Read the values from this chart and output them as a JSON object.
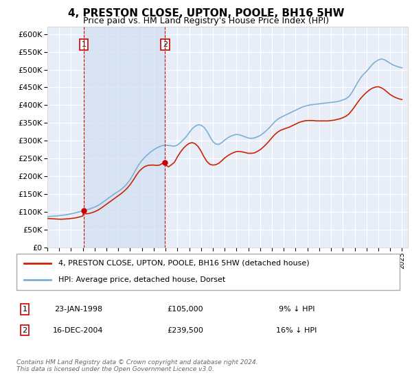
{
  "title": "4, PRESTON CLOSE, UPTON, POOLE, BH16 5HW",
  "subtitle": "Price paid vs. HM Land Registry's House Price Index (HPI)",
  "ylim": [
    0,
    620000
  ],
  "yticks": [
    0,
    50000,
    100000,
    150000,
    200000,
    250000,
    300000,
    350000,
    400000,
    450000,
    500000,
    550000,
    600000
  ],
  "xlim_start": 1995.0,
  "xlim_end": 2025.5,
  "plot_bg_color": "#e8eef8",
  "grid_color": "#ffffff",
  "sale1_date": 1998.07,
  "sale1_price": 105000,
  "sale1_label": "1",
  "sale2_date": 2004.96,
  "sale2_price": 239500,
  "sale2_label": "2",
  "vline_color": "#cc0000",
  "shade_color": "#d0ddf0",
  "sale_marker_color": "#cc0000",
  "legend_line1": "4, PRESTON CLOSE, UPTON, POOLE, BH16 5HW (detached house)",
  "legend_line2": "HPI: Average price, detached house, Dorset",
  "table_row1": [
    "1",
    "23-JAN-1998",
    "£105,000",
    "9% ↓ HPI"
  ],
  "table_row2": [
    "2",
    "16-DEC-2004",
    "£239,500",
    "16% ↓ HPI"
  ],
  "footnote": "Contains HM Land Registry data © Crown copyright and database right 2024.\nThis data is licensed under the Open Government Licence v3.0.",
  "hpi_color": "#7bafd4",
  "price_color": "#cc2200",
  "hpi_data": [
    [
      1995.0,
      87000
    ],
    [
      1995.25,
      88000
    ],
    [
      1995.5,
      88500
    ],
    [
      1995.75,
      89000
    ],
    [
      1996.0,
      90000
    ],
    [
      1996.25,
      91000
    ],
    [
      1996.5,
      92000
    ],
    [
      1996.75,
      93500
    ],
    [
      1997.0,
      95000
    ],
    [
      1997.25,
      97000
    ],
    [
      1997.5,
      99000
    ],
    [
      1997.75,
      101000
    ],
    [
      1998.0,
      103000
    ],
    [
      1998.25,
      106000
    ],
    [
      1998.5,
      108000
    ],
    [
      1998.75,
      111000
    ],
    [
      1999.0,
      114000
    ],
    [
      1999.25,
      118000
    ],
    [
      1999.5,
      123000
    ],
    [
      1999.75,
      129000
    ],
    [
      2000.0,
      135000
    ],
    [
      2000.25,
      141000
    ],
    [
      2000.5,
      147000
    ],
    [
      2000.75,
      153000
    ],
    [
      2001.0,
      158000
    ],
    [
      2001.25,
      164000
    ],
    [
      2001.5,
      171000
    ],
    [
      2001.75,
      180000
    ],
    [
      2002.0,
      191000
    ],
    [
      2002.25,
      205000
    ],
    [
      2002.5,
      220000
    ],
    [
      2002.75,
      234000
    ],
    [
      2003.0,
      245000
    ],
    [
      2003.25,
      254000
    ],
    [
      2003.5,
      262000
    ],
    [
      2003.75,
      269000
    ],
    [
      2004.0,
      275000
    ],
    [
      2004.25,
      280000
    ],
    [
      2004.5,
      284000
    ],
    [
      2004.75,
      287000
    ],
    [
      2005.0,
      288000
    ],
    [
      2005.25,
      287000
    ],
    [
      2005.5,
      286000
    ],
    [
      2005.75,
      285000
    ],
    [
      2006.0,
      288000
    ],
    [
      2006.25,
      295000
    ],
    [
      2006.5,
      303000
    ],
    [
      2006.75,
      312000
    ],
    [
      2007.0,
      323000
    ],
    [
      2007.25,
      334000
    ],
    [
      2007.5,
      341000
    ],
    [
      2007.75,
      345000
    ],
    [
      2008.0,
      344000
    ],
    [
      2008.25,
      338000
    ],
    [
      2008.5,
      327000
    ],
    [
      2008.75,
      312000
    ],
    [
      2009.0,
      298000
    ],
    [
      2009.25,
      291000
    ],
    [
      2009.5,
      290000
    ],
    [
      2009.75,
      295000
    ],
    [
      2010.0,
      302000
    ],
    [
      2010.25,
      308000
    ],
    [
      2010.5,
      313000
    ],
    [
      2010.75,
      316000
    ],
    [
      2011.0,
      318000
    ],
    [
      2011.25,
      317000
    ],
    [
      2011.5,
      314000
    ],
    [
      2011.75,
      311000
    ],
    [
      2012.0,
      308000
    ],
    [
      2012.25,
      307000
    ],
    [
      2012.5,
      308000
    ],
    [
      2012.75,
      311000
    ],
    [
      2013.0,
      315000
    ],
    [
      2013.25,
      321000
    ],
    [
      2013.5,
      328000
    ],
    [
      2013.75,
      336000
    ],
    [
      2014.0,
      345000
    ],
    [
      2014.25,
      354000
    ],
    [
      2014.5,
      361000
    ],
    [
      2014.75,
      366000
    ],
    [
      2015.0,
      370000
    ],
    [
      2015.25,
      374000
    ],
    [
      2015.5,
      378000
    ],
    [
      2015.75,
      382000
    ],
    [
      2016.0,
      386000
    ],
    [
      2016.25,
      390000
    ],
    [
      2016.5,
      394000
    ],
    [
      2016.75,
      397000
    ],
    [
      2017.0,
      399000
    ],
    [
      2017.25,
      401000
    ],
    [
      2017.5,
      402000
    ],
    [
      2017.75,
      403000
    ],
    [
      2018.0,
      404000
    ],
    [
      2018.25,
      405000
    ],
    [
      2018.5,
      406000
    ],
    [
      2018.75,
      407000
    ],
    [
      2019.0,
      408000
    ],
    [
      2019.25,
      409000
    ],
    [
      2019.5,
      410000
    ],
    [
      2019.75,
      412000
    ],
    [
      2020.0,
      415000
    ],
    [
      2020.25,
      418000
    ],
    [
      2020.5,
      424000
    ],
    [
      2020.75,
      435000
    ],
    [
      2021.0,
      449000
    ],
    [
      2021.25,
      464000
    ],
    [
      2021.5,
      477000
    ],
    [
      2021.75,
      487000
    ],
    [
      2022.0,
      495000
    ],
    [
      2022.25,
      505000
    ],
    [
      2022.5,
      515000
    ],
    [
      2022.75,
      522000
    ],
    [
      2023.0,
      527000
    ],
    [
      2023.25,
      530000
    ],
    [
      2023.5,
      528000
    ],
    [
      2023.75,
      523000
    ],
    [
      2024.0,
      518000
    ],
    [
      2024.25,
      513000
    ],
    [
      2024.5,
      510000
    ],
    [
      2024.75,
      507000
    ],
    [
      2025.0,
      505000
    ]
  ],
  "price_data": [
    [
      1995.0,
      82000
    ],
    [
      1995.25,
      81500
    ],
    [
      1995.5,
      81000
    ],
    [
      1995.75,
      80500
    ],
    [
      1996.0,
      80000
    ],
    [
      1996.25,
      80000
    ],
    [
      1996.5,
      80500
    ],
    [
      1996.75,
      81000
    ],
    [
      1997.0,
      82000
    ],
    [
      1997.25,
      83000
    ],
    [
      1997.5,
      84500
    ],
    [
      1997.75,
      86500
    ],
    [
      1998.0,
      89000
    ],
    [
      1998.07,
      105000
    ],
    [
      1998.25,
      95000
    ],
    [
      1998.5,
      96000
    ],
    [
      1998.75,
      98000
    ],
    [
      1999.0,
      101000
    ],
    [
      1999.25,
      105000
    ],
    [
      1999.5,
      110000
    ],
    [
      1999.75,
      116000
    ],
    [
      2000.0,
      122000
    ],
    [
      2000.25,
      128000
    ],
    [
      2000.5,
      134000
    ],
    [
      2000.75,
      140000
    ],
    [
      2001.0,
      146000
    ],
    [
      2001.25,
      152000
    ],
    [
      2001.5,
      159000
    ],
    [
      2001.75,
      167000
    ],
    [
      2002.0,
      177000
    ],
    [
      2002.25,
      189000
    ],
    [
      2002.5,
      202000
    ],
    [
      2002.75,
      214000
    ],
    [
      2003.0,
      222000
    ],
    [
      2003.25,
      228000
    ],
    [
      2003.5,
      231000
    ],
    [
      2003.75,
      232000
    ],
    [
      2004.0,
      232000
    ],
    [
      2004.25,
      231000
    ],
    [
      2004.5,
      232000
    ],
    [
      2004.75,
      237000
    ],
    [
      2004.96,
      239500
    ],
    [
      2005.0,
      232000
    ],
    [
      2005.25,
      227000
    ],
    [
      2005.5,
      233000
    ],
    [
      2005.75,
      240000
    ],
    [
      2006.0,
      255000
    ],
    [
      2006.25,
      268000
    ],
    [
      2006.5,
      279000
    ],
    [
      2006.75,
      287000
    ],
    [
      2007.0,
      293000
    ],
    [
      2007.25,
      295000
    ],
    [
      2007.5,
      292000
    ],
    [
      2007.75,
      284000
    ],
    [
      2008.0,
      271000
    ],
    [
      2008.25,
      255000
    ],
    [
      2008.5,
      242000
    ],
    [
      2008.75,
      234000
    ],
    [
      2009.0,
      232000
    ],
    [
      2009.25,
      233000
    ],
    [
      2009.5,
      237000
    ],
    [
      2009.75,
      244000
    ],
    [
      2010.0,
      252000
    ],
    [
      2010.25,
      258000
    ],
    [
      2010.5,
      263000
    ],
    [
      2010.75,
      267000
    ],
    [
      2011.0,
      270000
    ],
    [
      2011.25,
      270000
    ],
    [
      2011.5,
      269000
    ],
    [
      2011.75,
      267000
    ],
    [
      2012.0,
      265000
    ],
    [
      2012.25,
      265000
    ],
    [
      2012.5,
      266000
    ],
    [
      2012.75,
      270000
    ],
    [
      2013.0,
      275000
    ],
    [
      2013.25,
      282000
    ],
    [
      2013.5,
      290000
    ],
    [
      2013.75,
      299000
    ],
    [
      2014.0,
      309000
    ],
    [
      2014.25,
      318000
    ],
    [
      2014.5,
      325000
    ],
    [
      2014.75,
      330000
    ],
    [
      2015.0,
      333000
    ],
    [
      2015.25,
      336000
    ],
    [
      2015.5,
      339000
    ],
    [
      2015.75,
      343000
    ],
    [
      2016.0,
      347000
    ],
    [
      2016.25,
      351000
    ],
    [
      2016.5,
      354000
    ],
    [
      2016.75,
      356000
    ],
    [
      2017.0,
      357000
    ],
    [
      2017.25,
      357000
    ],
    [
      2017.5,
      357000
    ],
    [
      2017.75,
      356000
    ],
    [
      2018.0,
      356000
    ],
    [
      2018.25,
      356000
    ],
    [
      2018.5,
      356000
    ],
    [
      2018.75,
      356000
    ],
    [
      2019.0,
      357000
    ],
    [
      2019.25,
      358000
    ],
    [
      2019.5,
      360000
    ],
    [
      2019.75,
      362000
    ],
    [
      2020.0,
      365000
    ],
    [
      2020.25,
      369000
    ],
    [
      2020.5,
      375000
    ],
    [
      2020.75,
      385000
    ],
    [
      2021.0,
      396000
    ],
    [
      2021.25,
      408000
    ],
    [
      2021.5,
      419000
    ],
    [
      2021.75,
      428000
    ],
    [
      2022.0,
      436000
    ],
    [
      2022.25,
      443000
    ],
    [
      2022.5,
      448000
    ],
    [
      2022.75,
      451000
    ],
    [
      2023.0,
      452000
    ],
    [
      2023.25,
      449000
    ],
    [
      2023.5,
      444000
    ],
    [
      2023.75,
      437000
    ],
    [
      2024.0,
      430000
    ],
    [
      2024.25,
      425000
    ],
    [
      2024.5,
      421000
    ],
    [
      2024.75,
      418000
    ],
    [
      2025.0,
      416000
    ]
  ]
}
